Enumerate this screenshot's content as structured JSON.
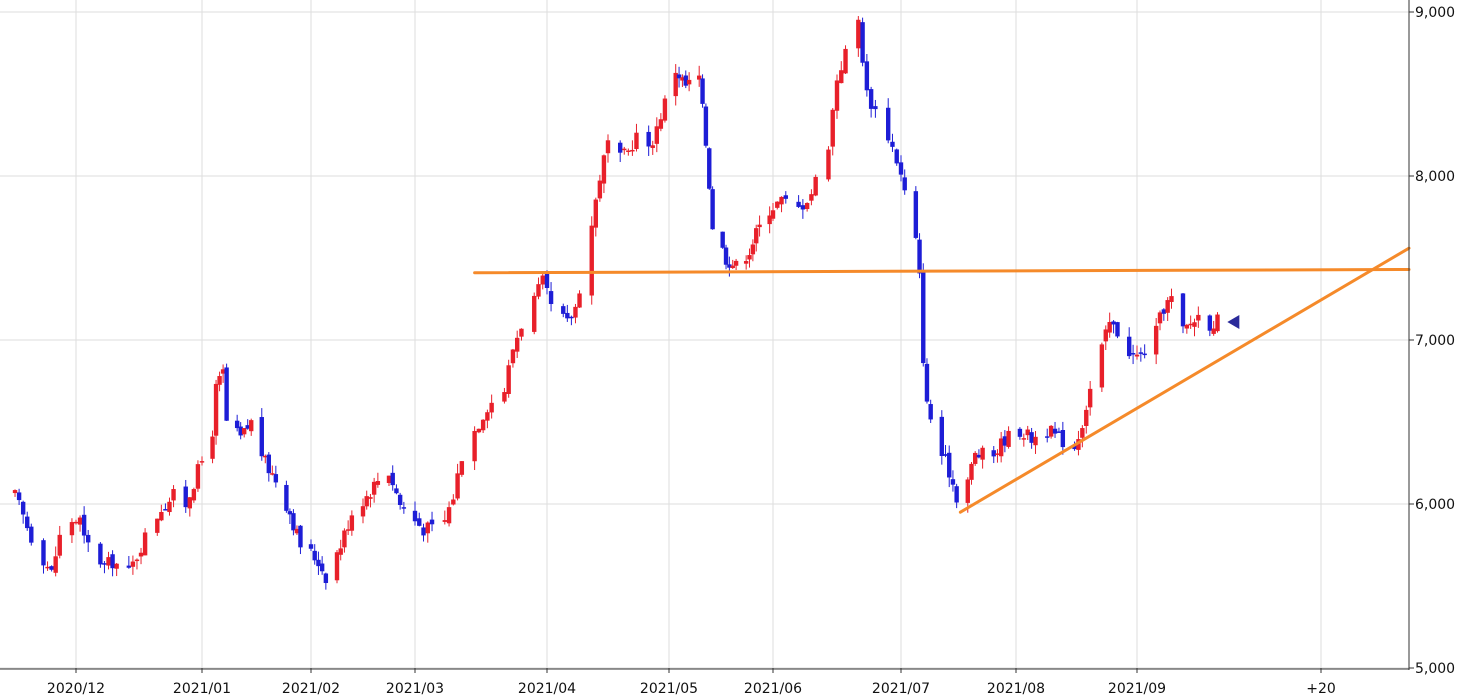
{
  "chart_data": {
    "type": "candlestick",
    "title": "",
    "xlabel": "",
    "ylabel": "",
    "ylim": [
      5000,
      9000
    ],
    "y_ticks": [
      "5,000",
      "6,000",
      "7,000",
      "8,000",
      "9,000"
    ],
    "y_tick_values": [
      5000,
      6000,
      7000,
      8000,
      9000
    ],
    "x_tick_labels": [
      "2020/12",
      "2021/01",
      "2021/02",
      "2021/03",
      "2021/04",
      "2021/05",
      "2021/06",
      "2021/07",
      "2021/08",
      "2021/09",
      "+20"
    ],
    "x_tick_dates": [
      "2020-12-01",
      "2021-01-01",
      "2021-02-01",
      "2021-03-01",
      "2021-04-01",
      "2021-05-01",
      "2021-06-01",
      "2021-07-01",
      "2021-08-01",
      "2021-09-01",
      "+20"
    ],
    "grid": true,
    "up_color": "#e8202a",
    "down_color": "#1d1dd6",
    "trendline_color": "#f58a2a",
    "marker_color": "#2a2a9a",
    "price_path": [
      [
        "2020-11-16",
        6050
      ],
      [
        "2020-11-20",
        5800
      ],
      [
        "2020-11-25",
        5580
      ],
      [
        "2020-11-27",
        5800
      ],
      [
        "2020-11-30",
        5900
      ],
      [
        "2020-12-02",
        5900
      ],
      [
        "2020-12-03",
        5780
      ],
      [
        "2020-12-08",
        5620
      ],
      [
        "2020-12-10",
        5650
      ],
      [
        "2020-12-14",
        5580
      ],
      [
        "2020-12-18",
        5800
      ],
      [
        "2020-12-22",
        5980
      ],
      [
        "2020-12-25",
        6050
      ],
      [
        "2020-12-28",
        6000
      ],
      [
        "2020-12-31",
        6200
      ],
      [
        "2021-01-04",
        6450
      ],
      [
        "2021-01-05",
        6700
      ],
      [
        "2021-01-07",
        6800
      ],
      [
        "2021-01-08",
        6500
      ],
      [
        "2021-01-12",
        6400
      ],
      [
        "2021-01-15",
        6500
      ],
      [
        "2021-01-19",
        6250
      ],
      [
        "2021-01-22",
        6150
      ],
      [
        "2021-01-26",
        5950
      ],
      [
        "2021-01-29",
        5750
      ],
      [
        "2021-02-01",
        5700
      ],
      [
        "2021-02-03",
        5650
      ],
      [
        "2021-02-05",
        5560
      ],
      [
        "2021-02-09",
        5750
      ],
      [
        "2021-02-12",
        5950
      ],
      [
        "2021-02-16",
        6050
      ],
      [
        "2021-02-19",
        6150
      ],
      [
        "2021-02-22",
        6200
      ],
      [
        "2021-02-25",
        6000
      ],
      [
        "2021-03-01",
        5900
      ],
      [
        "2021-03-03",
        5850
      ],
      [
        "2021-03-05",
        5850
      ],
      [
        "2021-03-08",
        5900
      ],
      [
        "2021-03-10",
        6050
      ],
      [
        "2021-03-12",
        6300
      ],
      [
        "2021-03-15",
        6450
      ],
      [
        "2021-03-18",
        6600
      ],
      [
        "2021-03-22",
        6700
      ],
      [
        "2021-03-24",
        6950
      ],
      [
        "2021-03-26",
        7100
      ],
      [
        "2021-03-29",
        7250
      ],
      [
        "2021-03-31",
        7350
      ],
      [
        "2021-04-02",
        7200
      ],
      [
        "2021-04-06",
        7100
      ],
      [
        "2021-04-08",
        7200
      ],
      [
        "2021-04-12",
        7700
      ],
      [
        "2021-04-14",
        8000
      ],
      [
        "2021-04-16",
        8200
      ],
      [
        "2021-04-19",
        8100
      ],
      [
        "2021-04-21",
        8150
      ],
      [
        "2021-04-23",
        8250
      ],
      [
        "2021-04-26",
        8150
      ],
      [
        "2021-04-30",
        8450
      ],
      [
        "2021-05-03",
        8650
      ],
      [
        "2021-05-06",
        8550
      ],
      [
        "2021-05-10",
        8600
      ],
      [
        "2021-05-12",
        8200
      ],
      [
        "2021-05-14",
        7700
      ],
      [
        "2021-05-18",
        7500
      ],
      [
        "2021-05-21",
        7450
      ],
      [
        "2021-05-25",
        7550
      ],
      [
        "2021-05-27",
        7650
      ],
      [
        "2021-05-31",
        7800
      ],
      [
        "2021-06-03",
        7850
      ],
      [
        "2021-06-07",
        7800
      ],
      [
        "2021-06-10",
        7900
      ],
      [
        "2021-06-14",
        8200
      ],
      [
        "2021-06-16",
        8600
      ],
      [
        "2021-06-18",
        8750
      ],
      [
        "2021-06-21",
        8950
      ],
      [
        "2021-06-23",
        8500
      ],
      [
        "2021-06-25",
        8400
      ],
      [
        "2021-06-28",
        8250
      ],
      [
        "2021-06-30",
        8100
      ],
      [
        "2021-07-02",
        7900
      ],
      [
        "2021-07-05",
        7600
      ],
      [
        "2021-07-06",
        7380
      ],
      [
        "2021-07-07",
        6900
      ],
      [
        "2021-07-08",
        6600
      ],
      [
        "2021-07-12",
        6300
      ],
      [
        "2021-07-14",
        6200
      ],
      [
        "2021-07-16",
        6050
      ],
      [
        "2021-07-19",
        6150
      ],
      [
        "2021-07-21",
        6300
      ],
      [
        "2021-07-26",
        6300
      ],
      [
        "2021-07-29",
        6400
      ],
      [
        "2021-08-02",
        6450
      ],
      [
        "2021-08-05",
        6400
      ],
      [
        "2021-08-09",
        6450
      ],
      [
        "2021-08-12",
        6400
      ],
      [
        "2021-08-16",
        6350
      ],
      [
        "2021-08-18",
        6500
      ],
      [
        "2021-08-20",
        6700
      ],
      [
        "2021-08-23",
        6950
      ],
      [
        "2021-08-25",
        7100
      ],
      [
        "2021-08-27",
        7050
      ],
      [
        "2021-08-31",
        6900
      ],
      [
        "2021-09-02",
        6900
      ],
      [
        "2021-09-06",
        7050
      ],
      [
        "2021-09-08",
        7200
      ],
      [
        "2021-09-10",
        7250
      ],
      [
        "2021-09-13",
        7050
      ],
      [
        "2021-09-15",
        7100
      ],
      [
        "2021-09-17",
        7150
      ],
      [
        "2021-09-20",
        7100
      ],
      [
        "2021-09-22",
        7120
      ]
    ],
    "lines": [
      {
        "from": [
          "2021-03-15",
          7410
        ],
        "to": [
          "+20",
          7430
        ]
      },
      {
        "from": [
          "2021-07-17",
          5950
        ],
        "to": [
          "+20",
          7560
        ]
      }
    ],
    "last_marker": [
      "2021-09-23",
      7110
    ]
  }
}
